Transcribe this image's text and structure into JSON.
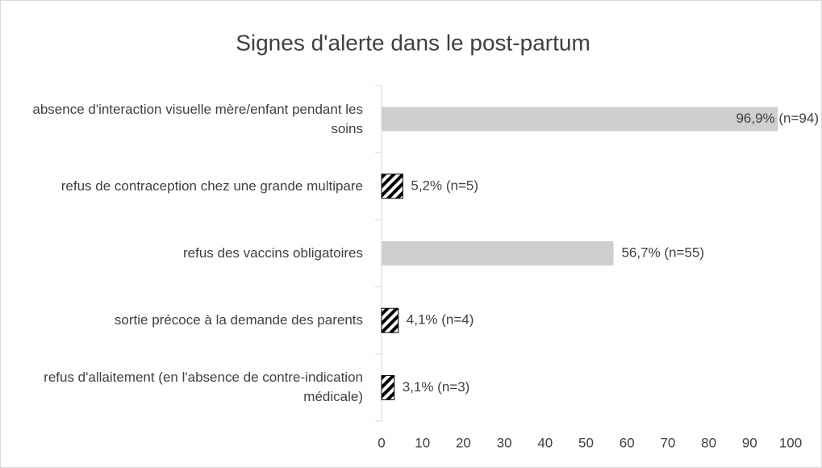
{
  "chart_data": {
    "type": "barh",
    "title": "Signes d'alerte dans le post-partum",
    "categories": [
      "absence d'interaction visuelle mère/enfant pendant les soins",
      "refus de contraception chez une grande multipare",
      "refus des vaccins obligatoires",
      "sortie précoce à la demande des parents",
      "refus d'allaitement (en l'absence de contre-indication médicale)"
    ],
    "values": [
      96.9,
      5.2,
      56.7,
      4.1,
      3.1
    ],
    "value_labels": [
      "96,9% (n=94)",
      "5,2% (n=5)",
      "56,7% (n=55)",
      "4,1% (n=4)",
      "3,1% (n=3)"
    ],
    "colors": [
      "#d0cece",
      "#000000",
      "#d0cece",
      "#000000",
      "#000000"
    ],
    "patterns": [
      "solid",
      "diagonal-hatch",
      "solid",
      "diagonal-hatch",
      "diagonal-hatch"
    ],
    "xlim": [
      0,
      100
    ],
    "xticks": [
      0,
      10,
      20,
      30,
      40,
      50,
      60,
      70,
      80,
      90,
      100
    ],
    "grid": false
  }
}
